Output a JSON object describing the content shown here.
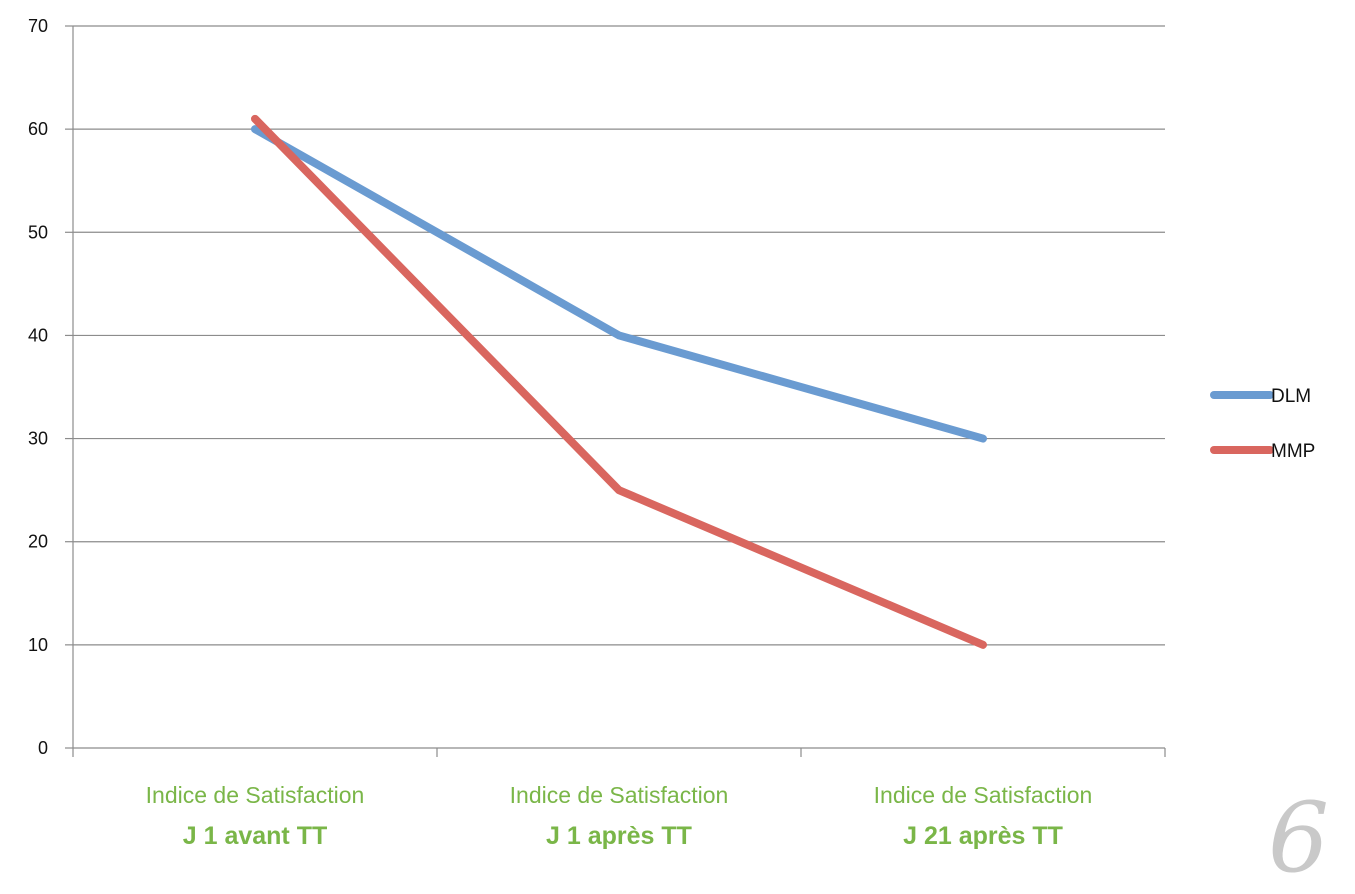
{
  "chart_data": {
    "type": "line",
    "categories": [
      {
        "line1": "Indice de Satisfaction",
        "line2": "J 1 avant TT"
      },
      {
        "line1": "Indice de Satisfaction",
        "line2": "J 1 après TT"
      },
      {
        "line1": "Indice de Satisfaction",
        "line2": "J 21 après TT"
      }
    ],
    "series": [
      {
        "name": "DLM",
        "values": [
          60,
          40,
          30
        ],
        "color": "#6a9bd1"
      },
      {
        "name": "MMP",
        "values": [
          61,
          25,
          10
        ],
        "color": "#d9665f"
      }
    ],
    "yticks": [
      0,
      10,
      20,
      30,
      40,
      50,
      60,
      70
    ],
    "ylim": [
      0,
      70
    ],
    "grid": true,
    "legend_position": "right",
    "category_label_color": "#7ab648"
  },
  "page_number": "6"
}
